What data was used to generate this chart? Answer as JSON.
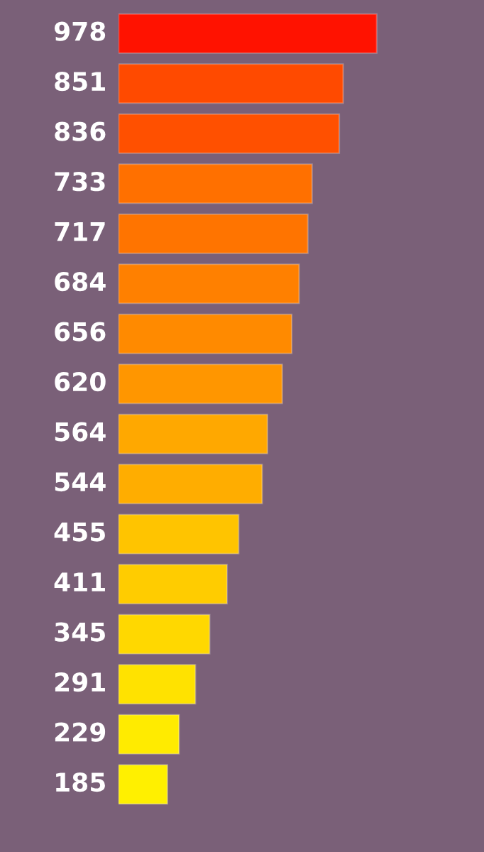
{
  "chart_data": {
    "type": "bar",
    "orientation": "horizontal",
    "data_labels": true,
    "categories": [
      null,
      null,
      null,
      null,
      null,
      null,
      null,
      null,
      null,
      null,
      null,
      null,
      null,
      null,
      null,
      null
    ],
    "values": [
      978,
      851,
      836,
      733,
      717,
      684,
      656,
      620,
      564,
      544,
      455,
      411,
      345,
      291,
      229,
      185
    ],
    "colors": [
      "#ff1200",
      "#ff4a00",
      "#ff5000",
      "#ff7000",
      "#ff7400",
      "#ff8000",
      "#ff8a00",
      "#ff9600",
      "#ffa800",
      "#ffad00",
      "#ffc400",
      "#ffcc00",
      "#ffd800",
      "#ffe200",
      "#ffeb00",
      "#fff000"
    ],
    "grid": false,
    "tick_labels": false
  }
}
